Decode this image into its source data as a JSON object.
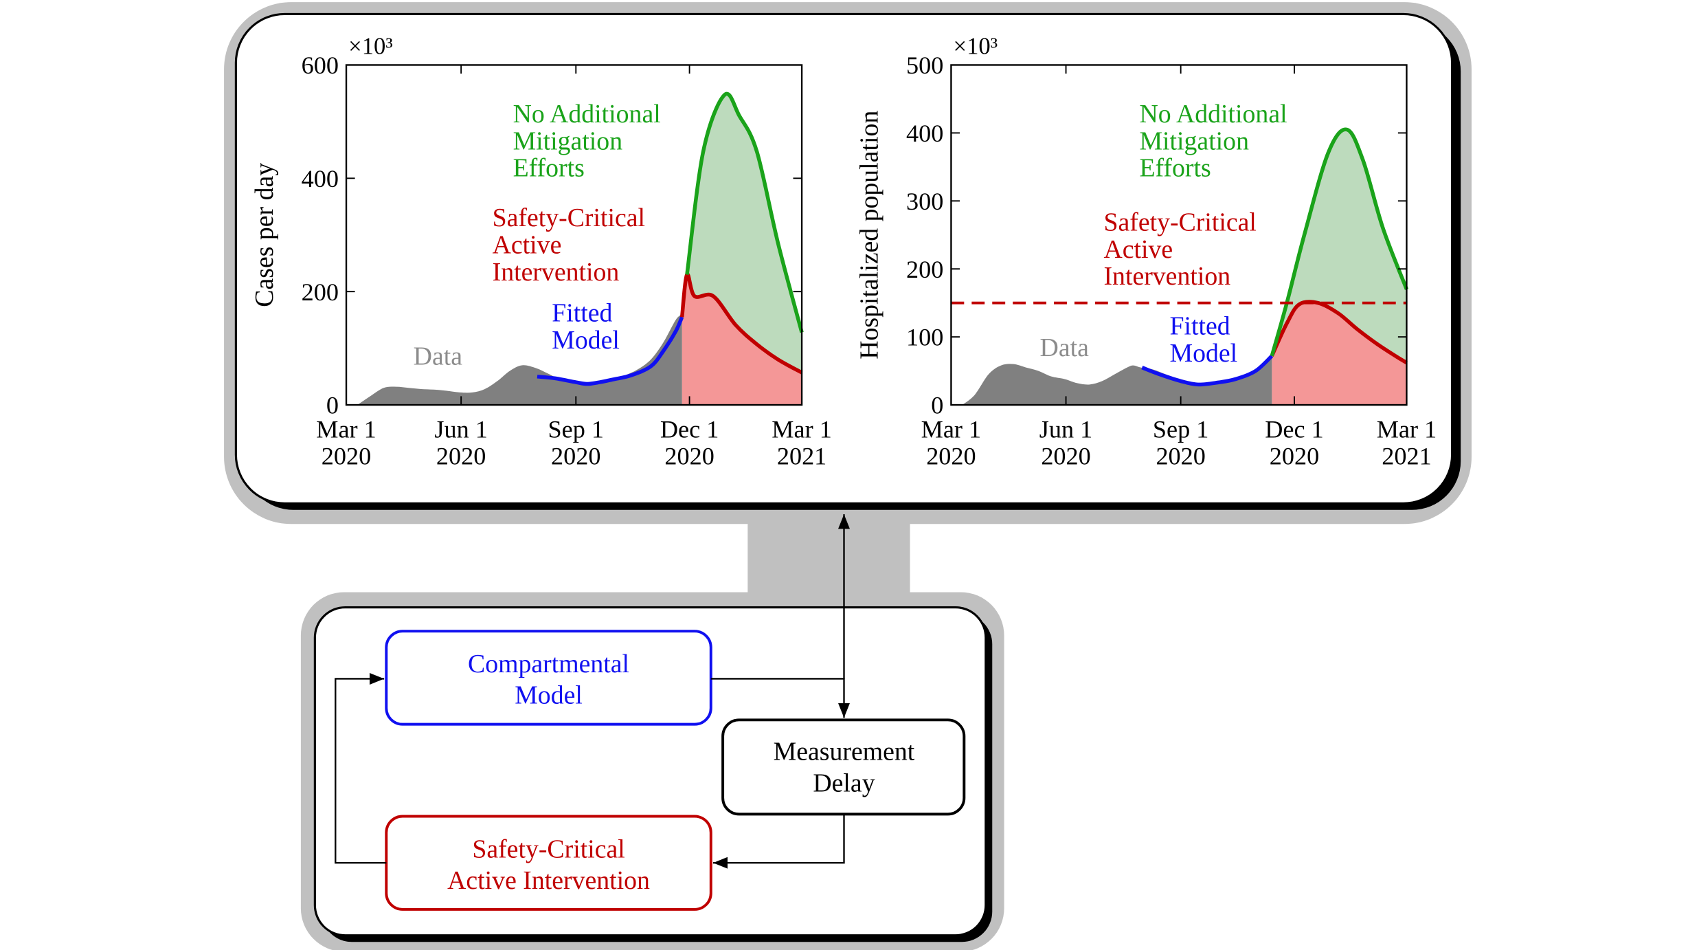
{
  "chart_data": [
    {
      "type": "line",
      "ylabel": "Cases per day",
      "y_multiplier": "×10³",
      "xlim": [
        "2020-03-01",
        "2021-03-01"
      ],
      "xticks": [
        {
          "value": "2020-03-01",
          "label": "Mar 1\n2020"
        },
        {
          "value": "2020-06-01",
          "label": "Jun 1\n2020"
        },
        {
          "value": "2020-09-01",
          "label": "Sep 1\n2020"
        },
        {
          "value": "2020-12-01",
          "label": "Dec 1\n2020"
        },
        {
          "value": "2021-03-01",
          "label": "Mar 1\n2021"
        }
      ],
      "ylim": [
        0,
        600
      ],
      "yticks": [
        0,
        200,
        400,
        600
      ],
      "series": [
        {
          "name": "Data",
          "color": "#8c8c8c",
          "fill": "#808080",
          "x": [
            "2020-03-10",
            "2020-03-20",
            "2020-03-31",
            "2020-04-10",
            "2020-04-20",
            "2020-04-30",
            "2020-05-10",
            "2020-05-20",
            "2020-05-31",
            "2020-06-10",
            "2020-06-20",
            "2020-06-30",
            "2020-07-10",
            "2020-07-20",
            "2020-07-31",
            "2020-08-10",
            "2020-08-20",
            "2020-08-31",
            "2020-09-10",
            "2020-09-20",
            "2020-09-30",
            "2020-10-10",
            "2020-10-20",
            "2020-10-31",
            "2020-11-10",
            "2020-11-20",
            "2020-11-25"
          ],
          "values": [
            0,
            15,
            30,
            32,
            30,
            28,
            27,
            25,
            22,
            22,
            28,
            42,
            60,
            70,
            65,
            55,
            45,
            42,
            38,
            42,
            45,
            52,
            62,
            80,
            110,
            150,
            160
          ]
        },
        {
          "name": "Fitted\nModel",
          "color": "#1010f0",
          "fill": null,
          "x": [
            "2020-08-01",
            "2020-08-15",
            "2020-09-01",
            "2020-09-10",
            "2020-09-20",
            "2020-10-01",
            "2020-10-15",
            "2020-10-31",
            "2020-11-10",
            "2020-11-20",
            "2020-11-25"
          ],
          "values": [
            50,
            47,
            40,
            37,
            40,
            45,
            52,
            68,
            95,
            130,
            155
          ]
        },
        {
          "name": "Safety-Critical\nActive\nIntervention",
          "color": "#c00000",
          "fill": "#f49797",
          "x": [
            "2020-11-25",
            "2020-11-29",
            "2020-12-05",
            "2020-12-20",
            "2021-01-07",
            "2021-01-24",
            "2021-02-10",
            "2021-03-01"
          ],
          "values": [
            155,
            230,
            192,
            192,
            141,
            107,
            80,
            57
          ]
        },
        {
          "name": "No Additional\nMitigation\nEfforts",
          "color": "#1aa31a",
          "fill": "#bddbbd",
          "x": [
            "2020-11-29",
            "2020-12-12",
            "2020-12-29",
            "2021-01-10",
            "2021-01-24",
            "2021-02-10",
            "2021-03-01"
          ],
          "values": [
            230,
            447,
            547,
            510,
            447,
            285,
            128
          ]
        }
      ]
    },
    {
      "type": "line",
      "ylabel": "Hospitalized population",
      "y_multiplier": "×10³",
      "xlim": [
        "2020-03-01",
        "2021-03-01"
      ],
      "xticks": [
        {
          "value": "2020-03-01",
          "label": "Mar 1\n2020"
        },
        {
          "value": "2020-06-01",
          "label": "Jun 1\n2020"
        },
        {
          "value": "2020-09-01",
          "label": "Sep 1\n2020"
        },
        {
          "value": "2020-12-01",
          "label": "Dec 1\n2020"
        },
        {
          "value": "2021-03-01",
          "label": "Mar 1\n2021"
        }
      ],
      "ylim": [
        0,
        500
      ],
      "yticks": [
        0,
        100,
        200,
        300,
        400,
        500
      ],
      "threshold": {
        "value": 150,
        "color": "#c00000"
      },
      "series": [
        {
          "name": "Data",
          "color": "#8c8c8c",
          "fill": "#808080",
          "x": [
            "2020-03-10",
            "2020-03-20",
            "2020-03-31",
            "2020-04-10",
            "2020-04-20",
            "2020-04-30",
            "2020-05-10",
            "2020-05-20",
            "2020-05-31",
            "2020-06-10",
            "2020-06-20",
            "2020-06-30",
            "2020-07-10",
            "2020-07-20",
            "2020-07-25",
            "2020-07-31",
            "2020-08-10",
            "2020-08-20",
            "2020-08-31",
            "2020-09-10",
            "2020-09-20",
            "2020-09-30",
            "2020-10-10",
            "2020-10-20",
            "2020-10-31",
            "2020-11-13"
          ],
          "values": [
            0,
            15,
            45,
            58,
            60,
            55,
            50,
            42,
            38,
            32,
            30,
            35,
            45,
            55,
            58,
            55,
            52,
            45,
            38,
            33,
            32,
            33,
            37,
            42,
            50,
            70
          ]
        },
        {
          "name": "Fitted\nModel",
          "color": "#1010f0",
          "fill": null,
          "x": [
            "2020-08-01",
            "2020-08-15",
            "2020-09-01",
            "2020-09-15",
            "2020-10-01",
            "2020-10-15",
            "2020-10-31",
            "2020-11-13"
          ],
          "values": [
            55,
            45,
            35,
            30,
            33,
            38,
            50,
            72
          ]
        },
        {
          "name": "Safety-Critical\nActive\nIntervention",
          "color": "#c00000",
          "fill": "#f49797",
          "x": [
            "2020-11-13",
            "2020-11-25",
            "2020-12-05",
            "2020-12-20",
            "2021-01-05",
            "2021-01-20",
            "2021-02-05",
            "2021-02-20",
            "2021-03-01"
          ],
          "values": [
            72,
            120,
            148,
            150,
            135,
            112,
            90,
            72,
            62
          ]
        },
        {
          "name": "No Additional\nMitigation\nEfforts",
          "color": "#1aa31a",
          "fill": "#bddbbd",
          "x": [
            "2020-11-13",
            "2020-11-25",
            "2020-12-09",
            "2020-12-28",
            "2021-01-12",
            "2021-01-25",
            "2021-02-10",
            "2021-03-01"
          ],
          "values": [
            72,
            150,
            250,
            370,
            405,
            360,
            260,
            170
          ]
        }
      ]
    }
  ],
  "diagram": {
    "nodes": [
      {
        "label": "Compartmental\nModel"
      },
      {
        "label": "Measurement\nDelay"
      },
      {
        "label": "Safety-Critical\nActive Intervention"
      }
    ]
  }
}
